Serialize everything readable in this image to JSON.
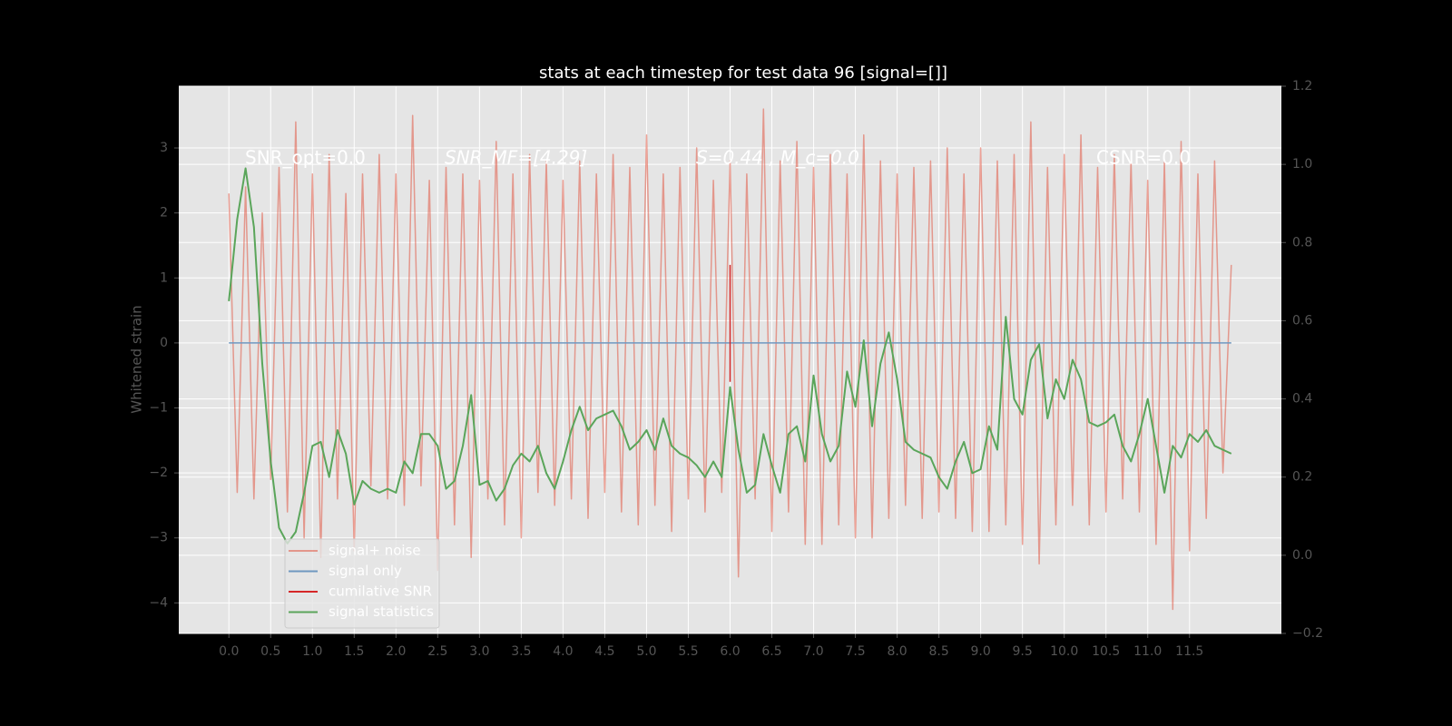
{
  "chart_data": {
    "type": "line",
    "title": "stats at each timestep for test data 96 [signal=[]]",
    "ylabel": "Whitened strain",
    "annotations": [
      "SNR_opt=0.0",
      "SNR_MF=[4.29]",
      "S=0.44 , M_c=0.0",
      "CSNR=0.0"
    ],
    "xlim": [
      -0.6,
      12.6
    ],
    "xticks": [
      {
        "value": 0,
        "label": "0.0"
      },
      0.5,
      {
        "value": 1,
        "label": "1.0"
      },
      1.5,
      {
        "value": 2,
        "label": "2.0"
      },
      2.5,
      {
        "value": 3,
        "label": "3.0"
      },
      3.5,
      {
        "value": 4,
        "label": "4.0"
      },
      4.5,
      {
        "value": 5,
        "label": "5.0"
      },
      5.5,
      {
        "value": 6,
        "label": "6.0"
      },
      6.5,
      {
        "value": 7,
        "label": "7.0"
      },
      7.5,
      {
        "value": 8,
        "label": "8.0"
      },
      8.5,
      {
        "value": 9,
        "label": "9.0"
      },
      9.5,
      {
        "value": 10,
        "label": "10.0"
      },
      10.5,
      {
        "value": 11,
        "label": "11.0"
      },
      11.5
    ],
    "ylim": [
      -4.47,
      3.95
    ],
    "yticks": [
      {
        "value": -4,
        "label": "−4"
      },
      {
        "value": -3,
        "label": "−3"
      },
      {
        "value": -2,
        "label": "−2"
      },
      {
        "value": -1,
        "label": "−1"
      },
      0,
      1,
      2,
      3
    ],
    "y2lim": [
      -0.2,
      1.2
    ],
    "y2ticks": [
      {
        "value": -0.2,
        "label": "−0.2"
      },
      {
        "value": 0,
        "label": "0.0"
      },
      0.2,
      0.4,
      0.6,
      0.8,
      {
        "value": 1,
        "label": "1.0"
      },
      1.2
    ],
    "grid": true,
    "legend": "lower left",
    "x": [
      0,
      0.1,
      0.2,
      0.3,
      0.4,
      0.5,
      0.6,
      0.7,
      0.8,
      0.9,
      1,
      1.1,
      1.2,
      1.3,
      1.4,
      1.5,
      1.6,
      1.7,
      1.8,
      1.9,
      2,
      2.1,
      2.2,
      2.3,
      2.4,
      2.5,
      2.6,
      2.7,
      2.8,
      2.9,
      3,
      3.1,
      3.2,
      3.3,
      3.4,
      3.5,
      3.6,
      3.7,
      3.8,
      3.9,
      4,
      4.1,
      4.2,
      4.3,
      4.4,
      4.5,
      4.6,
      4.7,
      4.8,
      4.9,
      5,
      5.1,
      5.2,
      5.3,
      5.4,
      5.5,
      5.6,
      5.7,
      5.8,
      5.9,
      6,
      6.1,
      6.2,
      6.3,
      6.4,
      6.5,
      6.6,
      6.7,
      6.8,
      6.9,
      7,
      7.1,
      7.2,
      7.3,
      7.4,
      7.5,
      7.6,
      7.7,
      7.8,
      7.9,
      8,
      8.1,
      8.2,
      8.3,
      8.4,
      8.5,
      8.6,
      8.7,
      8.8,
      8.9,
      9,
      9.1,
      9.2,
      9.3,
      9.4,
      9.5,
      9.6,
      9.7,
      9.8,
      9.9,
      10,
      10.1,
      10.2,
      10.3,
      10.4,
      10.5,
      10.6,
      10.7,
      10.8,
      10.9,
      11,
      11.1,
      11.2,
      11.3,
      11.4,
      11.5,
      11.6,
      11.7,
      11.8,
      11.9,
      12
    ],
    "series": [
      {
        "name": "signal+ noise",
        "color": "#e24a33",
        "alpha": 0.5,
        "values": [
          2.3,
          -2.3,
          2.4,
          -2.4,
          2.0,
          -2.1,
          2.7,
          -2.6,
          3.4,
          -3.0,
          2.6,
          -3.3,
          2.9,
          -2.4,
          2.3,
          -3.2,
          2.6,
          -2.2,
          2.9,
          -2.4,
          2.6,
          -2.5,
          3.5,
          -2.2,
          2.5,
          -3.5,
          2.7,
          -2.8,
          2.6,
          -3.3,
          2.5,
          -2.4,
          3.1,
          -2.8,
          2.6,
          -3.0,
          2.9,
          -2.3,
          2.8,
          -2.5,
          2.5,
          -2.4,
          2.8,
          -2.7,
          2.6,
          -2.3,
          2.9,
          -2.6,
          2.7,
          -2.8,
          3.2,
          -2.5,
          2.6,
          -2.9,
          2.7,
          -2.4,
          3.0,
          -2.6,
          2.5,
          -2.3,
          2.8,
          -3.6,
          2.6,
          -2.4,
          3.6,
          -2.9,
          2.8,
          -2.6,
          3.1,
          -3.1,
          2.7,
          -3.1,
          2.9,
          -2.8,
          2.6,
          -3.0,
          3.2,
          -3.0,
          2.8,
          -2.7,
          2.6,
          -2.5,
          2.7,
          -2.7,
          2.8,
          -2.6,
          3.0,
          -2.7,
          2.6,
          -2.9,
          3.0,
          -2.9,
          2.8,
          -2.8,
          2.9,
          -3.1,
          3.4,
          -3.4,
          2.7,
          -2.8,
          2.9,
          -2.5,
          3.2,
          -2.8,
          2.7,
          -2.6,
          2.9,
          -2.4,
          2.8,
          -2.6,
          2.5,
          -3.1,
          2.8,
          -4.1,
          3.1,
          -3.2,
          2.6,
          -2.7,
          2.8,
          -2.0,
          1.2
        ]
      },
      {
        "name": "signal only",
        "color": "#6f98c0",
        "x": [
          0,
          12
        ],
        "values": [
          0,
          0
        ]
      },
      {
        "name": "cumilative SNR",
        "color": "#d62728",
        "x": [
          6,
          6
        ],
        "values": [
          1.2,
          -0.6
        ]
      },
      {
        "name": "signal statistics",
        "color": "#5aa55a",
        "axis": "y2",
        "values": [
          0.65,
          0.86,
          0.99,
          0.84,
          0.49,
          0.24,
          0.07,
          0.03,
          0.06,
          0.16,
          0.28,
          0.29,
          0.2,
          0.32,
          0.26,
          0.13,
          0.19,
          0.17,
          0.16,
          0.17,
          0.16,
          0.24,
          0.21,
          0.31,
          0.31,
          0.28,
          0.17,
          0.19,
          0.28,
          0.41,
          0.18,
          0.19,
          0.14,
          0.17,
          0.23,
          0.26,
          0.24,
          0.28,
          0.21,
          0.17,
          0.24,
          0.32,
          0.38,
          0.32,
          0.35,
          0.36,
          0.37,
          0.33,
          0.27,
          0.29,
          0.32,
          0.27,
          0.35,
          0.28,
          0.26,
          0.25,
          0.23,
          0.2,
          0.24,
          0.2,
          0.43,
          0.27,
          0.16,
          0.18,
          0.31,
          0.23,
          0.16,
          0.31,
          0.33,
          0.24,
          0.46,
          0.31,
          0.24,
          0.28,
          0.47,
          0.38,
          0.55,
          0.33,
          0.49,
          0.57,
          0.45,
          0.29,
          0.27,
          0.26,
          0.25,
          0.2,
          0.17,
          0.24,
          0.29,
          0.21,
          0.22,
          0.33,
          0.27,
          0.61,
          0.4,
          0.36,
          0.5,
          0.54,
          0.35,
          0.45,
          0.4,
          0.5,
          0.45,
          0.34,
          0.33,
          0.34,
          0.36,
          0.28,
          0.24,
          0.31,
          0.4,
          0.28,
          0.16,
          0.28,
          0.25,
          0.31,
          0.29,
          0.32,
          0.28,
          0.27,
          0.26
        ]
      }
    ]
  }
}
